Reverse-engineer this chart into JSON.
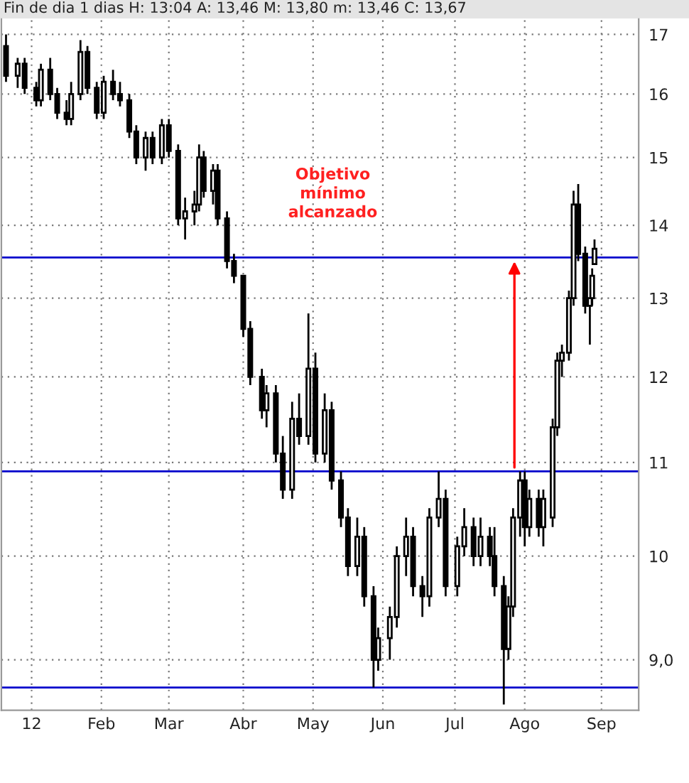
{
  "chart_data": {
    "type": "candlestick",
    "title": "Fin de dia 1 dias H: 13:04 A: 13,46 M: 13,80 m: 13,46 C: 13,67",
    "color": "#000000",
    "x": [
      "2011-12-22",
      "2011-12-27",
      "2011-12-30",
      "2012-01-04",
      "2012-01-06",
      "2012-01-10",
      "2012-01-13",
      "2012-01-17",
      "2012-01-19",
      "2012-01-23",
      "2012-01-26",
      "2012-01-30",
      "2012-02-02",
      "2012-02-06",
      "2012-02-09",
      "2012-02-13",
      "2012-02-16",
      "2012-02-20",
      "2012-02-23",
      "2012-02-27",
      "2012-03-01",
      "2012-03-05",
      "2012-03-08",
      "2012-03-12",
      "2012-03-14",
      "2012-03-16",
      "2012-03-20",
      "2012-03-22",
      "2012-03-26",
      "2012-03-29",
      "2012-04-02",
      "2012-04-05",
      "2012-04-10",
      "2012-04-12",
      "2012-04-16",
      "2012-04-19",
      "2012-04-23",
      "2012-04-26",
      "2012-04-30",
      "2012-05-03",
      "2012-05-07",
      "2012-05-10",
      "2012-05-14",
      "2012-05-17",
      "2012-05-21",
      "2012-05-24",
      "2012-05-28",
      "2012-05-30",
      "2012-06-04",
      "2012-06-07",
      "2012-06-11",
      "2012-06-14",
      "2012-06-18",
      "2012-06-21",
      "2012-06-25",
      "2012-06-28",
      "2012-07-03",
      "2012-07-06",
      "2012-07-10",
      "2012-07-13",
      "2012-07-17",
      "2012-07-19",
      "2012-07-23",
      "2012-07-25",
      "2012-07-27",
      "2012-07-30",
      "2012-08-01",
      "2012-08-03",
      "2012-08-07",
      "2012-08-09",
      "2012-08-13",
      "2012-08-15",
      "2012-08-17",
      "2012-08-20",
      "2012-08-22",
      "2012-08-24",
      "2012-08-27",
      "2012-08-29",
      "2012-08-30",
      "2012-08-31"
    ],
    "ohlc": [
      [
        16.8,
        17.0,
        16.2,
        16.3
      ],
      [
        16.3,
        16.6,
        16.1,
        16.5
      ],
      [
        16.5,
        16.6,
        16.0,
        16.1
      ],
      [
        16.1,
        16.2,
        15.8,
        15.9
      ],
      [
        15.9,
        16.5,
        15.8,
        16.4
      ],
      [
        16.4,
        16.6,
        15.9,
        16.0
      ],
      [
        16.0,
        16.1,
        15.6,
        15.7
      ],
      [
        15.7,
        15.9,
        15.5,
        15.6
      ],
      [
        15.6,
        16.2,
        15.5,
        16.0
      ],
      [
        16.0,
        16.9,
        15.9,
        16.7
      ],
      [
        16.7,
        16.8,
        16.0,
        16.1
      ],
      [
        16.1,
        16.2,
        15.6,
        15.7
      ],
      [
        15.7,
        16.3,
        15.6,
        16.2
      ],
      [
        16.2,
        16.4,
        15.9,
        16.0
      ],
      [
        16.0,
        16.2,
        15.8,
        15.9
      ],
      [
        15.9,
        16.0,
        15.3,
        15.4
      ],
      [
        15.4,
        15.5,
        14.9,
        15.0
      ],
      [
        15.0,
        15.4,
        14.8,
        15.3
      ],
      [
        15.3,
        15.4,
        14.9,
        15.0
      ],
      [
        15.0,
        15.6,
        14.9,
        15.5
      ],
      [
        15.5,
        15.6,
        15.0,
        15.1
      ],
      [
        15.1,
        15.2,
        14.0,
        14.1
      ],
      [
        14.1,
        14.4,
        13.8,
        14.2
      ],
      [
        14.2,
        14.5,
        14.0,
        14.3
      ],
      [
        14.3,
        15.2,
        14.2,
        15.0
      ],
      [
        15.0,
        15.1,
        14.4,
        14.5
      ],
      [
        14.5,
        14.9,
        14.3,
        14.8
      ],
      [
        14.8,
        14.9,
        14.0,
        14.1
      ],
      [
        14.1,
        14.2,
        13.4,
        13.5
      ],
      [
        13.5,
        13.6,
        13.2,
        13.3
      ],
      [
        13.3,
        13.3,
        12.5,
        12.6
      ],
      [
        12.6,
        12.7,
        11.9,
        12.0
      ],
      [
        12.0,
        12.1,
        11.5,
        11.6
      ],
      [
        11.6,
        11.9,
        11.4,
        11.8
      ],
      [
        11.8,
        11.9,
        11.0,
        11.1
      ],
      [
        11.1,
        11.3,
        10.6,
        10.7
      ],
      [
        10.7,
        11.7,
        10.6,
        11.5
      ],
      [
        11.5,
        11.8,
        11.2,
        11.3
      ],
      [
        11.3,
        12.8,
        11.2,
        12.1
      ],
      [
        12.1,
        12.3,
        11.0,
        11.1
      ],
      [
        11.1,
        11.8,
        11.0,
        11.6
      ],
      [
        11.6,
        11.7,
        10.7,
        10.8
      ],
      [
        10.8,
        10.9,
        10.3,
        10.4
      ],
      [
        10.4,
        10.5,
        9.8,
        9.9
      ],
      [
        9.9,
        10.4,
        9.8,
        10.2
      ],
      [
        10.2,
        10.3,
        9.5,
        9.6
      ],
      [
        9.6,
        9.7,
        8.75,
        9.0
      ],
      [
        9.0,
        9.3,
        8.9,
        9.2
      ],
      [
        9.2,
        9.5,
        9.0,
        9.4
      ],
      [
        9.4,
        10.1,
        9.3,
        10.0
      ],
      [
        10.0,
        10.4,
        9.8,
        10.2
      ],
      [
        10.2,
        10.3,
        9.6,
        9.7
      ],
      [
        9.7,
        9.8,
        9.4,
        9.6
      ],
      [
        9.6,
        10.5,
        9.5,
        10.4
      ],
      [
        10.4,
        10.9,
        10.3,
        10.6
      ],
      [
        10.6,
        10.7,
        9.6,
        9.7
      ],
      [
        9.7,
        10.2,
        9.6,
        10.1
      ],
      [
        10.1,
        10.5,
        10.0,
        10.3
      ],
      [
        10.3,
        10.4,
        9.9,
        10.0
      ],
      [
        10.0,
        10.4,
        9.9,
        10.2
      ],
      [
        10.2,
        10.3,
        9.9,
        10.0
      ],
      [
        10.0,
        10.3,
        9.6,
        9.7
      ],
      [
        9.7,
        9.8,
        8.6,
        9.1
      ],
      [
        9.1,
        9.6,
        9.0,
        9.5
      ],
      [
        9.5,
        10.5,
        9.4,
        10.4
      ],
      [
        10.4,
        10.9,
        10.2,
        10.8
      ],
      [
        10.8,
        10.9,
        10.1,
        10.3
      ],
      [
        10.3,
        10.7,
        10.2,
        10.6
      ],
      [
        10.6,
        10.7,
        10.2,
        10.3
      ],
      [
        10.3,
        10.7,
        10.1,
        10.6
      ],
      [
        10.4,
        11.5,
        10.3,
        11.4
      ],
      [
        11.4,
        12.3,
        11.3,
        12.2
      ],
      [
        12.2,
        12.4,
        12.0,
        12.3
      ],
      [
        12.3,
        13.1,
        12.2,
        13.0
      ],
      [
        13.0,
        14.5,
        12.9,
        14.3
      ],
      [
        14.3,
        14.6,
        13.5,
        13.6
      ],
      [
        13.6,
        13.7,
        12.8,
        12.9
      ],
      [
        12.9,
        13.0,
        12.4,
        13.0
      ],
      [
        13.0,
        13.4,
        12.9,
        13.3
      ],
      [
        13.46,
        13.8,
        13.46,
        13.67
      ]
    ],
    "log": "y",
    "xlim": [
      "2011-12-20",
      "2012-09-19"
    ],
    "xticks": [
      {
        "value": "2012-01-02",
        "label": "12"
      },
      {
        "value": "2012-02-01",
        "label": "Feb"
      },
      {
        "value": "2012-03-01",
        "label": "Mar"
      },
      {
        "value": "2012-04-02",
        "label": "Abr"
      },
      {
        "value": "2012-05-02",
        "label": "May"
      },
      {
        "value": "2012-06-01",
        "label": "Jun"
      },
      {
        "value": "2012-07-02",
        "label": "Jul"
      },
      {
        "value": "2012-08-01",
        "label": "Ago"
      },
      {
        "value": "2012-09-03",
        "label": "Sep"
      }
    ],
    "ylim": [
      8.55,
      17.3
    ],
    "yticks": [
      {
        "value": 9,
        "label": "9,0"
      },
      10,
      11,
      12,
      13,
      14,
      15,
      16,
      17
    ],
    "grid": true,
    "ref_lines": [
      {
        "axis": "y",
        "value": 13.55,
        "color": "#0000cc"
      },
      {
        "axis": "y",
        "value": 10.9,
        "color": "#0000cc"
      },
      {
        "axis": "y",
        "value": 8.75,
        "color": "#0000cc"
      }
    ],
    "annotations": [
      "Objetivo\nmínimo\nalcanzado"
    ]
  }
}
